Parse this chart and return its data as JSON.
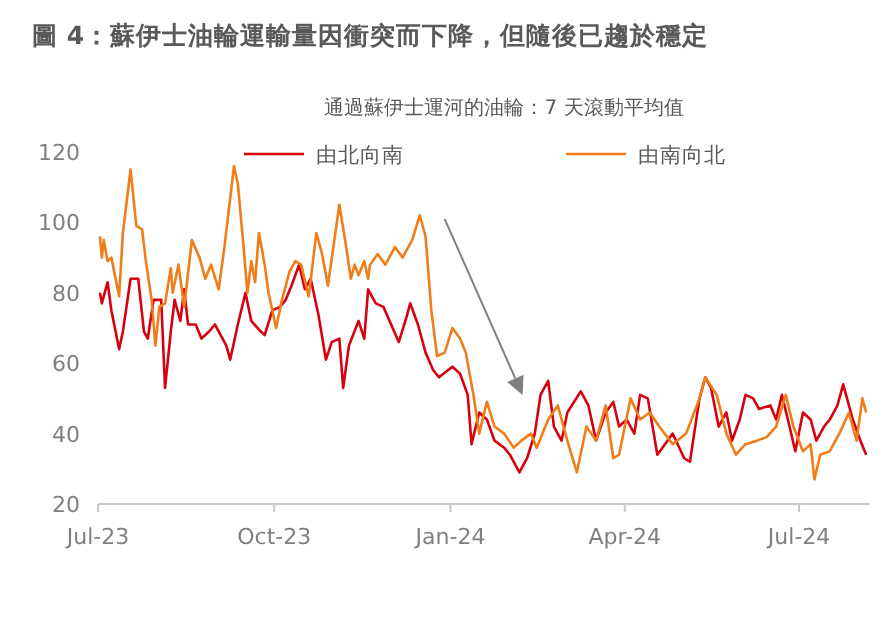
{
  "chart_data": {
    "type": "line",
    "title": "圖 4：蘇伊士油輪運輸量因衝突而下降，但隨後已趨於穩定",
    "legend_title": "通過蘇伊士運河的油輪：7 天滾動平均值",
    "legend": "top",
    "grid": false,
    "xlim": [
      "2023-07-01",
      "2024-08-07"
    ],
    "ylim": [
      20,
      120
    ],
    "yticks": [
      20,
      40,
      60,
      80,
      100,
      120
    ],
    "xticks": [
      {
        "value": "2023-07-01",
        "label": "Jul-23"
      },
      {
        "value": "2023-10-01",
        "label": "Oct-23"
      },
      {
        "value": "2024-01-01",
        "label": "Jan-24"
      },
      {
        "value": "2024-04-01",
        "label": "Apr-24"
      },
      {
        "value": "2024-07-01",
        "label": "Jul-24"
      }
    ],
    "series": [
      {
        "name": "由北向南",
        "color": "#d7000f",
        "x": [
          "2023-07-02",
          "2023-07-03",
          "2023-07-06",
          "2023-07-08",
          "2023-07-12",
          "2023-07-14",
          "2023-07-18",
          "2023-07-22",
          "2023-07-25",
          "2023-07-27",
          "2023-07-30",
          "2023-08-03",
          "2023-08-05",
          "2023-08-08",
          "2023-08-10",
          "2023-08-13",
          "2023-08-15",
          "2023-08-17",
          "2023-08-21",
          "2023-08-24",
          "2023-08-28",
          "2023-08-31",
          "2023-09-06",
          "2023-09-08",
          "2023-09-12",
          "2023-09-16",
          "2023-09-19",
          "2023-09-24",
          "2023-09-26",
          "2023-09-30",
          "2023-10-04",
          "2023-10-07",
          "2023-10-10",
          "2023-10-14",
          "2023-10-17",
          "2023-10-20",
          "2023-10-24",
          "2023-10-28",
          "2023-10-31",
          "2023-11-04",
          "2023-11-06",
          "2023-11-09",
          "2023-11-14",
          "2023-11-17",
          "2023-11-19",
          "2023-11-23",
          "2023-11-27",
          "2023-12-01",
          "2023-12-05",
          "2023-12-09",
          "2023-12-11",
          "2023-12-15",
          "2023-12-19",
          "2023-12-23",
          "2023-12-26",
          "2024-01-02",
          "2024-01-06",
          "2024-01-10",
          "2024-01-12",
          "2024-01-16",
          "2024-01-20",
          "2024-01-24",
          "2024-01-29",
          "2024-02-01",
          "2024-02-06",
          "2024-02-10",
          "2024-02-14",
          "2024-02-17",
          "2024-02-21",
          "2024-02-24",
          "2024-02-28",
          "2024-03-02",
          "2024-03-09",
          "2024-03-13",
          "2024-03-17",
          "2024-03-22",
          "2024-03-26",
          "2024-03-29",
          "2024-04-02",
          "2024-04-06",
          "2024-04-09",
          "2024-04-13",
          "2024-04-18",
          "2024-04-22",
          "2024-04-26",
          "2024-05-02",
          "2024-05-05",
          "2024-05-10",
          "2024-05-13",
          "2024-05-16",
          "2024-05-20",
          "2024-05-24",
          "2024-05-27",
          "2024-05-31",
          "2024-06-03",
          "2024-06-07",
          "2024-06-10",
          "2024-06-16",
          "2024-06-19",
          "2024-06-22",
          "2024-06-26",
          "2024-06-29",
          "2024-07-03",
          "2024-07-07",
          "2024-07-10",
          "2024-07-14",
          "2024-07-17",
          "2024-07-21",
          "2024-07-24",
          "2024-07-26",
          "2024-07-29",
          "2024-08-02",
          "2024-08-05"
        ],
        "values": [
          80,
          77,
          83,
          75,
          64,
          69,
          84,
          84,
          69,
          67,
          78,
          78,
          53,
          69,
          78,
          72,
          81,
          71,
          71,
          67,
          69,
          71,
          65,
          61,
          71,
          80,
          72,
          69,
          68,
          75,
          76,
          78,
          82,
          88,
          81,
          84,
          74,
          61,
          66,
          67,
          53,
          65,
          72,
          67,
          81,
          77,
          76,
          71,
          66,
          73,
          77,
          71,
          63,
          58,
          56,
          59,
          57,
          51,
          37,
          46,
          44,
          38,
          36,
          34,
          29,
          33,
          40,
          51,
          55,
          42,
          38,
          46,
          52,
          48,
          38,
          46,
          49,
          42,
          44,
          40,
          51,
          50,
          34,
          37,
          40,
          33,
          32,
          50,
          56,
          53,
          42,
          46,
          38,
          44,
          51,
          50,
          47,
          48,
          44,
          51,
          42,
          35,
          46,
          44,
          38,
          42,
          44,
          48,
          54,
          50,
          44,
          38,
          34
        ]
      },
      {
        "name": "由南向北",
        "color": "#f07d1a",
        "x": [
          "2023-07-02",
          "2023-07-03",
          "2023-07-04",
          "2023-07-06",
          "2023-07-08",
          "2023-07-12",
          "2023-07-14",
          "2023-07-18",
          "2023-07-21",
          "2023-07-24",
          "2023-07-26",
          "2023-07-29",
          "2023-07-31",
          "2023-08-02",
          "2023-08-05",
          "2023-08-08",
          "2023-08-09",
          "2023-08-12",
          "2023-08-15",
          "2023-08-19",
          "2023-08-23",
          "2023-08-26",
          "2023-08-29",
          "2023-09-02",
          "2023-09-05",
          "2023-09-10",
          "2023-09-12",
          "2023-09-15",
          "2023-09-17",
          "2023-09-19",
          "2023-09-21",
          "2023-09-23",
          "2023-09-26",
          "2023-09-28",
          "2023-10-02",
          "2023-10-05",
          "2023-10-09",
          "2023-10-12",
          "2023-10-15",
          "2023-10-19",
          "2023-10-23",
          "2023-10-26",
          "2023-10-29",
          "2023-11-04",
          "2023-11-07",
          "2023-11-10",
          "2023-11-12",
          "2023-11-14",
          "2023-11-17",
          "2023-11-19",
          "2023-11-20",
          "2023-11-24",
          "2023-11-28",
          "2023-12-03",
          "2023-12-07",
          "2023-12-12",
          "2023-12-16",
          "2023-12-19",
          "2023-12-22",
          "2023-12-25",
          "2023-12-29",
          "2024-01-02",
          "2024-01-06",
          "2024-01-09",
          "2024-01-13",
          "2024-01-16",
          "2024-01-20",
          "2024-01-24",
          "2024-01-29",
          "2024-02-03",
          "2024-02-07",
          "2024-02-12",
          "2024-02-15",
          "2024-02-21",
          "2024-02-26",
          "2024-03-02",
          "2024-03-07",
          "2024-03-12",
          "2024-03-17",
          "2024-03-22",
          "2024-03-26",
          "2024-03-29",
          "2024-04-04",
          "2024-04-09",
          "2024-04-14",
          "2024-04-19",
          "2024-04-26",
          "2024-05-03",
          "2024-05-10",
          "2024-05-13",
          "2024-05-19",
          "2024-05-24",
          "2024-05-29",
          "2024-06-03",
          "2024-06-09",
          "2024-06-14",
          "2024-06-19",
          "2024-06-24",
          "2024-06-28",
          "2024-07-03",
          "2024-07-07",
          "2024-07-09",
          "2024-07-12",
          "2024-07-17",
          "2024-07-22",
          "2024-07-27",
          "2024-07-31",
          "2024-08-03",
          "2024-08-05"
        ],
        "values": [
          96,
          90,
          95,
          89,
          90,
          79,
          97,
          115,
          99,
          98,
          89,
          78,
          65,
          76,
          77,
          87,
          80,
          88,
          76,
          95,
          90,
          84,
          88,
          81,
          93,
          116,
          111,
          93,
          80,
          89,
          83,
          97,
          88,
          80,
          70,
          78,
          86,
          89,
          88,
          79,
          97,
          91,
          82,
          105,
          95,
          84,
          88,
          85,
          89,
          84,
          88,
          91,
          88,
          93,
          90,
          95,
          102,
          96,
          75,
          62,
          63,
          70,
          67,
          63,
          51,
          40,
          49,
          42,
          40,
          36,
          38,
          40,
          36,
          44,
          48,
          38,
          29,
          42,
          38,
          48,
          33,
          34,
          50,
          44,
          46,
          42,
          37,
          40,
          50,
          56,
          51,
          40,
          34,
          37,
          38,
          39,
          42,
          51,
          42,
          35,
          37,
          27,
          34,
          35,
          40,
          46,
          38,
          50,
          46
        ]
      }
    ]
  }
}
